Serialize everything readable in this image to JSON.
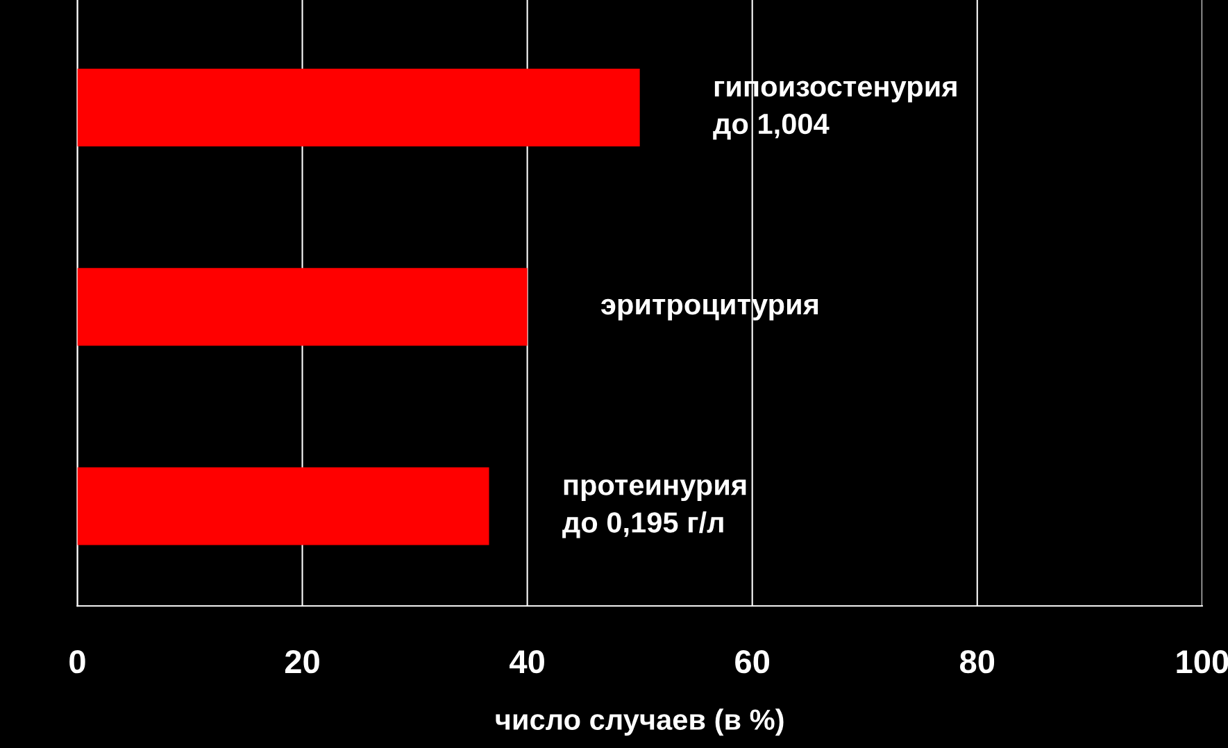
{
  "chart_data": {
    "type": "bar",
    "orientation": "horizontal",
    "categories": [
      "гипоизостенурия\nдо 1,004",
      "эритроцитурия",
      "протеинурия\nдо 0,195 г/л"
    ],
    "values": [
      50,
      40,
      36.6
    ],
    "color": "#ff0000",
    "xlim": [
      0,
      100
    ],
    "xticks": [
      0,
      20,
      40,
      60,
      80,
      100
    ],
    "grid": "x",
    "xlabel": "число случаев (в %)"
  }
}
